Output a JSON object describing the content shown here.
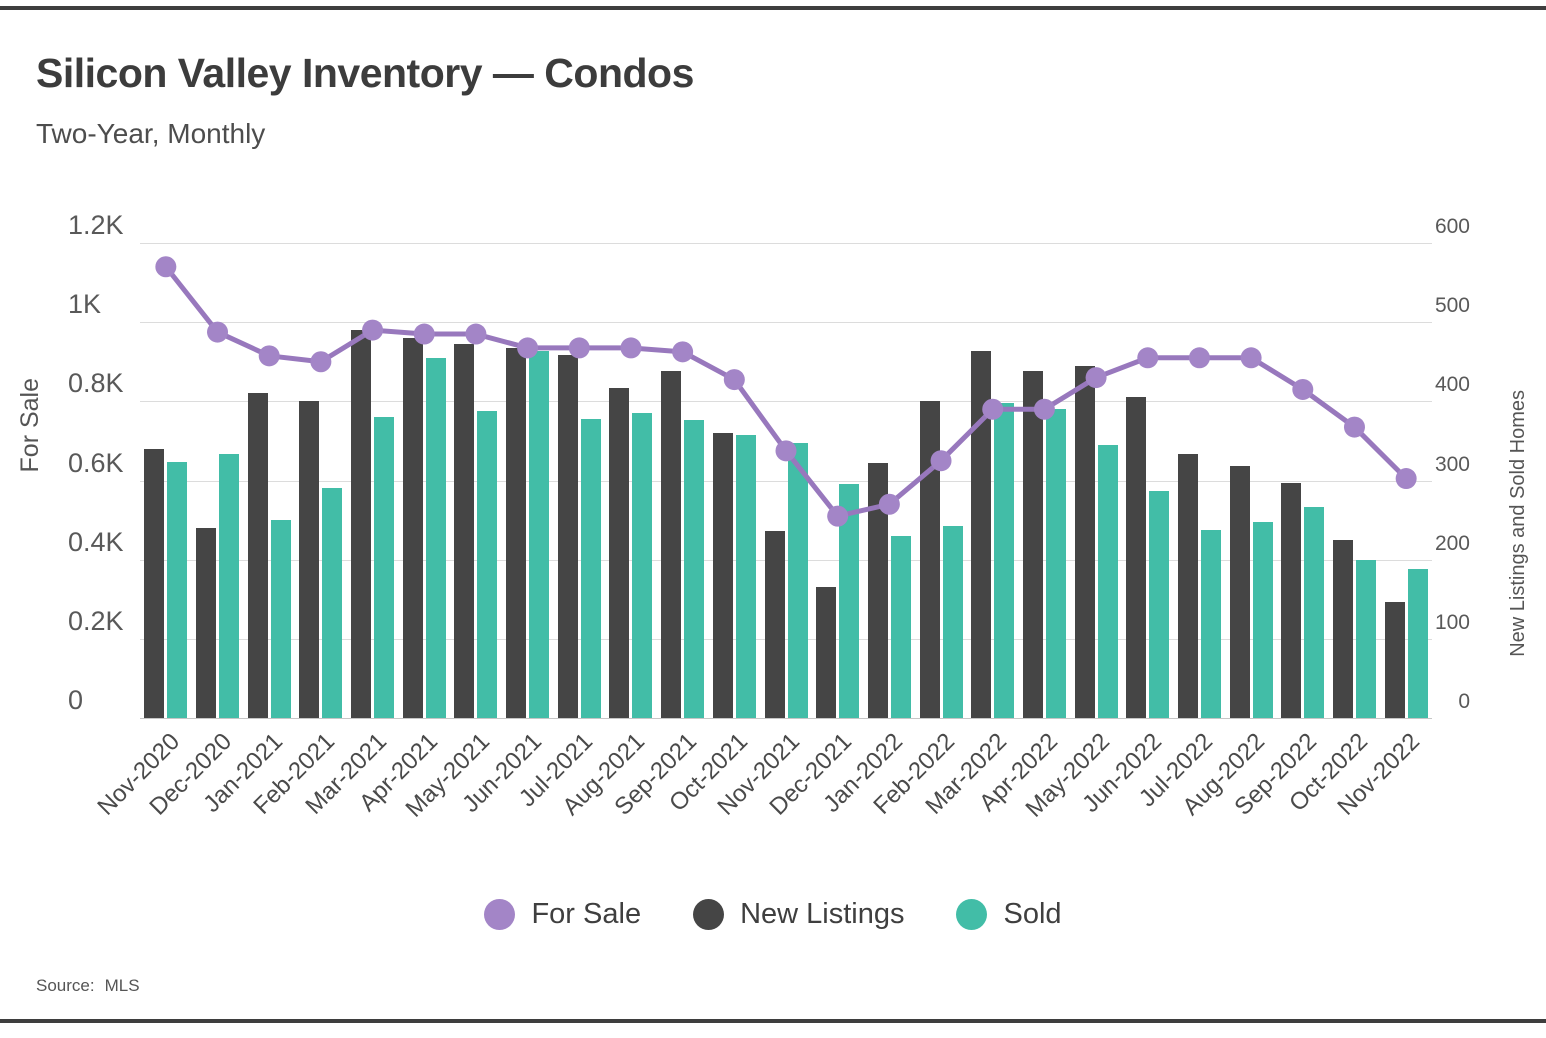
{
  "page": {
    "title": "Silicon Valley Inventory — Condos",
    "subtitle": "Two-Year, Monthly",
    "source_label": "Source:",
    "source_value": "MLS"
  },
  "chart_data": {
    "type": "bar+line combo, dual axis",
    "categories": [
      "Nov-2020",
      "Dec-2020",
      "Jan-2021",
      "Feb-2021",
      "Mar-2021",
      "Apr-2021",
      "May-2021",
      "Jun-2021",
      "Jul-2021",
      "Aug-2021",
      "Sep-2021",
      "Oct-2021",
      "Nov-2021",
      "Dec-2021",
      "Jan-2022",
      "Feb-2022",
      "Mar-2022",
      "Apr-2022",
      "May-2022",
      "Jun-2022",
      "Jul-2022",
      "Aug-2022",
      "Sep-2022",
      "Oct-2022",
      "Nov-2022"
    ],
    "series": [
      {
        "name": "For Sale",
        "type": "line",
        "axis": "left",
        "color": "#a385c7",
        "line_color": "#9878bd",
        "values": [
          1140,
          975,
          915,
          900,
          980,
          970,
          970,
          935,
          935,
          935,
          925,
          855,
          675,
          510,
          540,
          650,
          780,
          780,
          860,
          910,
          910,
          910,
          830,
          735,
          605
        ]
      },
      {
        "name": "New Listings",
        "type": "bar",
        "axis": "right",
        "color": "#454545",
        "values": [
          340,
          240,
          410,
          400,
          490,
          480,
          472,
          468,
          458,
          417,
          438,
          360,
          236,
          165,
          322,
          400,
          463,
          438,
          445,
          406,
          334,
          318,
          297,
          225,
          147
        ]
      },
      {
        "name": "Sold",
        "type": "bar",
        "axis": "right",
        "color": "#42bda7",
        "values": [
          324,
          334,
          250,
          290,
          380,
          455,
          388,
          464,
          378,
          385,
          376,
          358,
          348,
          296,
          230,
          243,
          398,
          390,
          345,
          287,
          237,
          248,
          266,
          200,
          188
        ]
      }
    ],
    "left_axis": {
      "title": "For Sale",
      "min": 0,
      "max": 1200,
      "ticks": [
        "0",
        "0.2K",
        "0.4K",
        "0.6K",
        "0.8K",
        "1K",
        "1.2K"
      ]
    },
    "right_axis": {
      "title": "New Listings and Sold Homes",
      "min": 0,
      "max": 600,
      "ticks": [
        "0",
        "100",
        "200",
        "300",
        "400",
        "500",
        "600"
      ]
    },
    "grid": true,
    "legend_position": "bottom"
  }
}
